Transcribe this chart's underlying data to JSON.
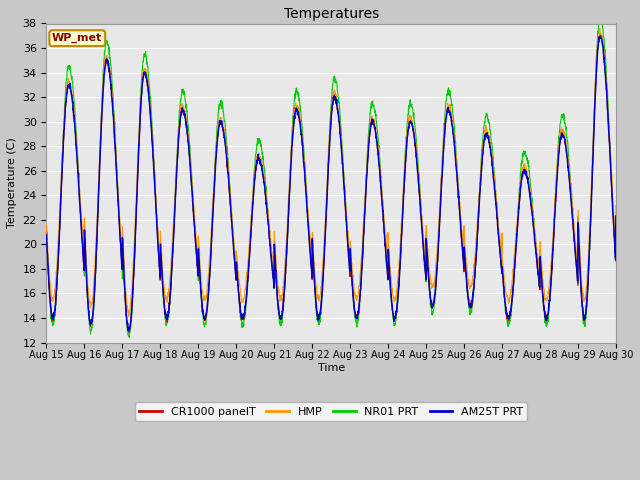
{
  "title": "Temperatures",
  "xlabel": "Time",
  "ylabel": "Temperature (C)",
  "ylim": [
    12,
    38
  ],
  "yticks": [
    12,
    14,
    16,
    18,
    20,
    22,
    24,
    26,
    28,
    30,
    32,
    34,
    36,
    38
  ],
  "series_colors": {
    "CR1000 panelT": "#cc0000",
    "HMP": "#ff9900",
    "NR01 PRT": "#00cc00",
    "AM25T PRT": "#0000cc"
  },
  "station_label": "WP_met",
  "start_day": 15,
  "end_day": 30,
  "day_peaks": [
    33.0,
    35.0,
    34.0,
    31.0,
    30.0,
    27.0,
    31.0,
    32.0,
    30.0,
    30.0,
    31.0,
    29.0,
    26.0,
    29.0,
    37.0
  ],
  "day_mins": [
    14.0,
    13.5,
    13.0,
    14.0,
    14.0,
    14.0,
    14.0,
    14.0,
    14.0,
    14.0,
    15.0,
    15.0,
    14.0,
    14.0,
    14.0
  ],
  "pts_per_day": 144,
  "figsize": [
    6.4,
    4.8
  ],
  "dpi": 100
}
